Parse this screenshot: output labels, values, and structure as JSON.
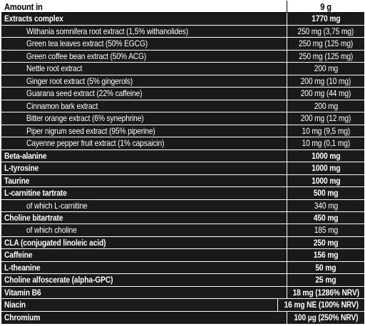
{
  "header": {
    "name": "Amount in",
    "value": "9 g"
  },
  "rows": [
    {
      "name": "Extracts complex",
      "value": "1770 mg",
      "style": "bold"
    },
    {
      "name": "Withania somnifera root extract (1,5% withanolides)",
      "value": "250 mg (3,75 mg)",
      "style": "sub"
    },
    {
      "name": "Green tea leaves extract (50% EGCG)",
      "value": "250 mg (125 mg)",
      "style": "sub"
    },
    {
      "name": "Green coffee bean extract (50% ACG)",
      "value": "250 mg (125 mg)",
      "style": "sub"
    },
    {
      "name": "Nettle root extract",
      "value": "200 mg",
      "style": "sub"
    },
    {
      "name": "Ginger root extract (5% gingerols)",
      "value": "200 mg (10 mg)",
      "style": "sub"
    },
    {
      "name": "Guarana seed extract (22% caffeine)",
      "value": "200 mg (44 mg)",
      "style": "sub"
    },
    {
      "name": "Cinnamon bark extract",
      "value": "200 mg",
      "style": "sub"
    },
    {
      "name": "Bitter orange extract (6% synephrine)",
      "value": "200 mg (12 mg)",
      "style": "sub"
    },
    {
      "name": "Piper nigrum seed extract (95% piperine)",
      "value": "10 mg (9,5 mg)",
      "style": "sub"
    },
    {
      "name": "Cayenne pepper fruit extract (1% capsaicin)",
      "value": "10 mg (0,1 mg)",
      "style": "sub"
    },
    {
      "name": "Beta-alanine",
      "value": "1000 mg",
      "style": "bold"
    },
    {
      "name": "L-tyrosine",
      "value": "1000 mg",
      "style": "bold"
    },
    {
      "name": "Taurine",
      "value": "1000 mg",
      "style": "bold"
    },
    {
      "name": "L-carnitine tartrate",
      "value": "500 mg",
      "style": "bold"
    },
    {
      "name": "of which L-carnitine",
      "value": "340 mg",
      "style": "sub"
    },
    {
      "name": "Choline bitartrate",
      "value": "450 mg",
      "style": "bold"
    },
    {
      "name": "of which choline",
      "value": "185 mg",
      "style": "sub"
    },
    {
      "name": "CLA (conjugated linoleic acid)",
      "value": "250 mg",
      "style": "bold"
    },
    {
      "name": "Caffeine",
      "value": "156 mg",
      "style": "bold"
    },
    {
      "name": "L-theanine",
      "value": "50 mg",
      "style": "bold"
    },
    {
      "name": "Choline alfoscerate (alpha-GPC)",
      "value": "25 mg",
      "style": "bold"
    },
    {
      "name": "Vitamin B6",
      "value": "18 mg (1286% NRV)",
      "style": "bold"
    },
    {
      "name": "Niacin",
      "value": "16 mg NE (100% NRV)",
      "style": "bold"
    },
    {
      "name": "Chromium",
      "value": "100 µg (250% NRV)",
      "style": "bold"
    }
  ]
}
